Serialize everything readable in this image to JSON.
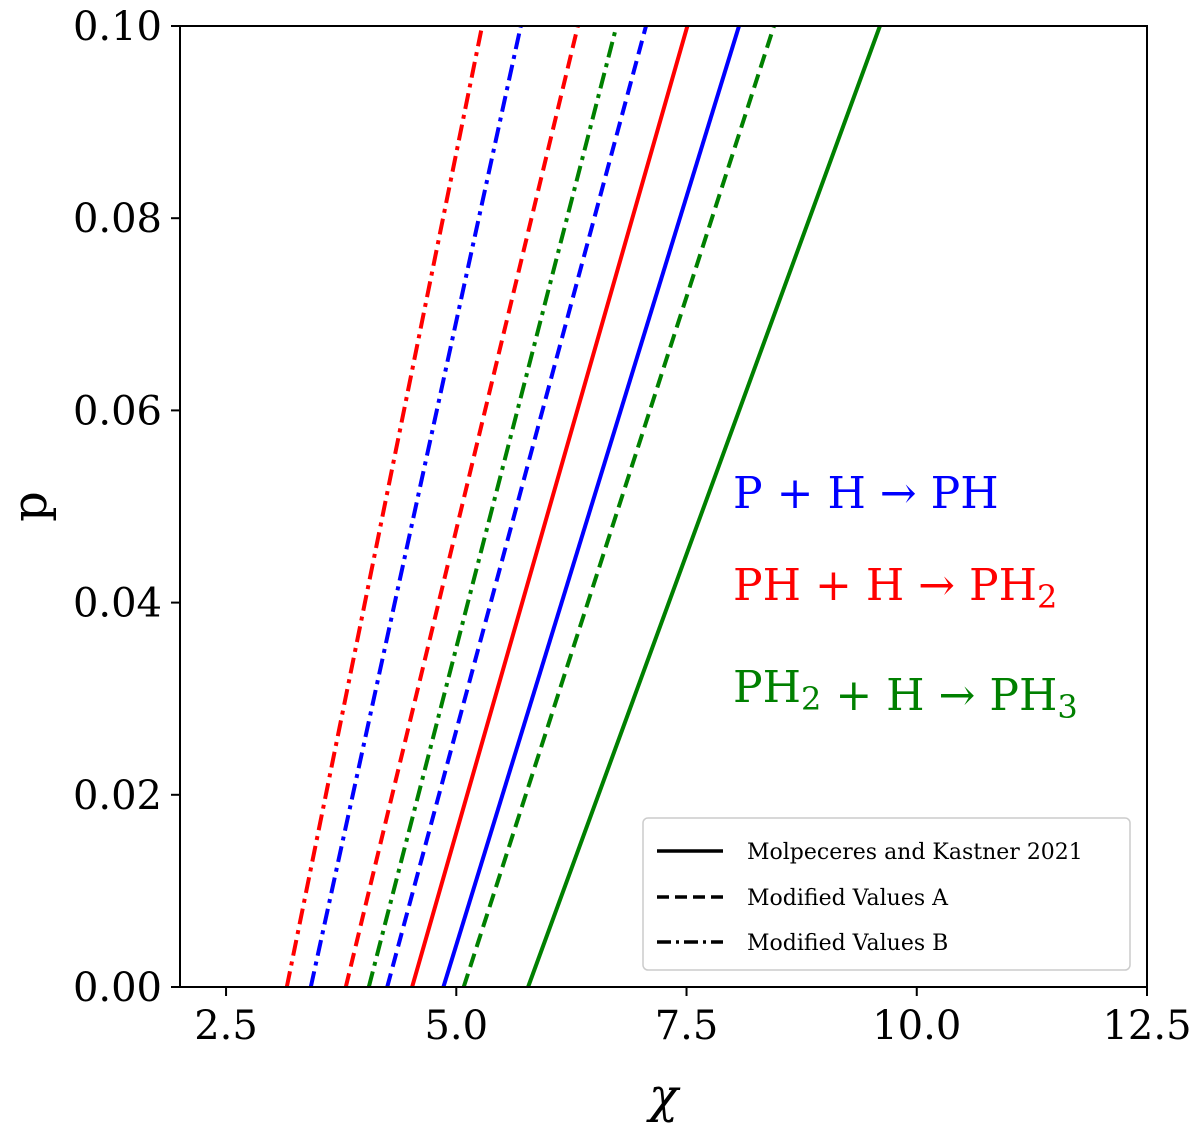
{
  "chart_data": {
    "type": "line",
    "title": "",
    "xlabel": "χ",
    "ylabel": "p",
    "xlim": [
      2.0,
      12.5
    ],
    "ylim": [
      0.0,
      0.1
    ],
    "xticks": [
      2.5,
      5.0,
      7.5,
      10.0,
      12.5
    ],
    "xtick_labels": [
      "2.5",
      "5.0",
      "7.5",
      "10.0",
      "12.5"
    ],
    "yticks": [
      0.0,
      0.02,
      0.04,
      0.06,
      0.08,
      0.1
    ],
    "ytick_labels": [
      "0.00",
      "0.02",
      "0.04",
      "0.06",
      "0.08",
      "0.10"
    ],
    "grid": false,
    "series": [
      {
        "name": "P + H → PH (Molpeceres and Kastner 2021)",
        "reaction": "P + H → PH",
        "variant": "Molpeceres and Kastner 2021",
        "color": "#0000ff",
        "style": "solid",
        "x": [
          4.86,
          8.07
        ],
        "y": [
          0.0,
          0.1
        ]
      },
      {
        "name": "P + H → PH (Modified Values A)",
        "reaction": "P + H → PH",
        "variant": "Modified Values A",
        "color": "#0000ff",
        "style": "dashed",
        "x": [
          4.25,
          7.06
        ],
        "y": [
          0.0,
          0.1
        ]
      },
      {
        "name": "P + H → PH (Modified Values B)",
        "reaction": "P + H → PH",
        "variant": "Modified Values B",
        "color": "#0000ff",
        "style": "dashdot",
        "x": [
          3.42,
          5.7
        ],
        "y": [
          0.0,
          0.1
        ]
      },
      {
        "name": "PH + H → PH2 (Molpeceres and Kastner 2021)",
        "reaction": "PH + H → PH2",
        "variant": "Molpeceres and Kastner 2021",
        "color": "#ff0000",
        "style": "solid",
        "x": [
          4.52,
          7.51
        ],
        "y": [
          0.0,
          0.1
        ]
      },
      {
        "name": "PH + H → PH2 (Modified Values A)",
        "reaction": "PH + H → PH2",
        "variant": "Modified Values A",
        "color": "#ff0000",
        "style": "dashed",
        "x": [
          3.8,
          6.32
        ],
        "y": [
          0.0,
          0.1
        ]
      },
      {
        "name": "PH + H → PH2 (Modified Values B)",
        "reaction": "PH + H → PH2",
        "variant": "Modified Values B",
        "color": "#ff0000",
        "style": "dashdot",
        "x": [
          3.16,
          5.28
        ],
        "y": [
          0.0,
          0.1
        ]
      },
      {
        "name": "PH2 + H → PH3 (Molpeceres and Kastner 2021)",
        "reaction": "PH2 + H → PH3",
        "variant": "Molpeceres and Kastner 2021",
        "color": "#008000",
        "style": "solid",
        "x": [
          5.78,
          9.6
        ],
        "y": [
          0.0,
          0.1
        ]
      },
      {
        "name": "PH2 + H → PH3 (Modified Values A)",
        "reaction": "PH2 + H → PH3",
        "variant": "Modified Values A",
        "color": "#008000",
        "style": "dashed",
        "x": [
          5.08,
          8.45
        ],
        "y": [
          0.0,
          0.1
        ]
      },
      {
        "name": "PH2 + H → PH3 (Modified Values B)",
        "reaction": "PH2 + H → PH3",
        "variant": "Modified Values B",
        "color": "#008000",
        "style": "dashdot",
        "x": [
          4.05,
          6.74
        ],
        "y": [
          0.0,
          0.1
        ]
      }
    ],
    "annotations": [
      {
        "name": "reaction-blue",
        "color": "#0000ff",
        "parts": [
          [
            "P + H → PH",
            ""
          ]
        ]
      },
      {
        "name": "reaction-red",
        "color": "#ff0000",
        "parts": [
          [
            "PH + H → PH",
            ""
          ],
          [
            "2",
            "sub"
          ]
        ]
      },
      {
        "name": "reaction-green",
        "color": "#008000",
        "parts": [
          [
            "PH",
            ""
          ],
          [
            "2",
            "sub"
          ],
          [
            " + H → PH",
            ""
          ],
          [
            "3",
            "sub"
          ]
        ]
      }
    ],
    "legend": {
      "placement": "lower-right",
      "entries": [
        {
          "label": "Molpeceres and Kastner 2021",
          "style": "solid"
        },
        {
          "label": "Modified Values A",
          "style": "dashed"
        },
        {
          "label": "Modified Values B",
          "style": "dashdot"
        }
      ]
    }
  }
}
